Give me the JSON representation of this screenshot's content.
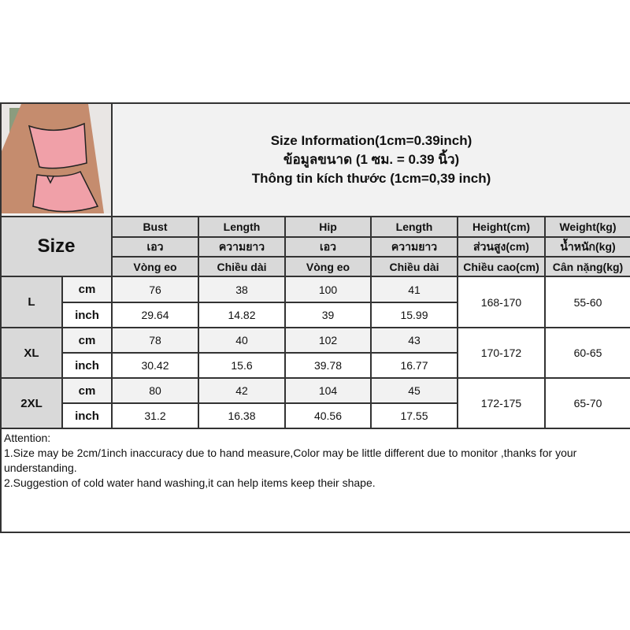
{
  "title_lines": [
    "Size Information(1cm=0.39inch)",
    "ข้อมูลขนาด (1 ซม. = 0.39 นิ้ว)",
    "Thông tin kích thước (1cm=0,39 inch)"
  ],
  "size_label": "Size",
  "columns": [
    {
      "en": "Bust",
      "th": "เอว",
      "vi": "Vòng eo"
    },
    {
      "en": "Length",
      "th": "ความยาว",
      "vi": "Chiều dài"
    },
    {
      "en": "Hip",
      "th": "เอว",
      "vi": "Vòng eo"
    },
    {
      "en": "Length",
      "th": "ความยาว",
      "vi": "Chiều dài"
    },
    {
      "en": "Height(cm)",
      "th": "ส่วนสูง(cm)",
      "vi": "Chiều cao(cm)"
    },
    {
      "en": "Weight(kg)",
      "th": "น้ำหนัก(kg)",
      "vi": "Cân nặng(kg)"
    }
  ],
  "sizes": [
    {
      "name": "L",
      "cm_label": "cm",
      "inch_label": "inch",
      "cm": [
        "76",
        "38",
        "100",
        "41"
      ],
      "inch": [
        "29.64",
        "14.82",
        "39",
        "15.99"
      ],
      "height": "168-170",
      "weight": "55-60"
    },
    {
      "name": "XL",
      "cm_label": "cm",
      "inch_label": "inch",
      "cm": [
        "78",
        "40",
        "102",
        "43"
      ],
      "inch": [
        "30.42",
        "15.6",
        "39.78",
        "16.77"
      ],
      "height": "170-172",
      "weight": "60-65"
    },
    {
      "name": "2XL",
      "cm_label": "cm",
      "inch_label": "inch",
      "cm": [
        "80",
        "42",
        "104",
        "45"
      ],
      "inch": [
        "31.2",
        "16.38",
        "40.56",
        "17.55"
      ],
      "height": "172-175",
      "weight": "65-70"
    }
  ],
  "attention": {
    "heading": "Attention:",
    "lines": [
      "1.Size may be 2cm/1inch inaccuracy due to hand measure,Color may be little different due to monitor ,thanks for your understanding.",
      "2.Suggestion of cold water hand washing,it can help items keep their shape."
    ]
  },
  "colors": {
    "header_bg": "#f2f2f2",
    "label_bg": "#d9d9d9",
    "border": "#333333",
    "garment": "#f0a0a8"
  }
}
